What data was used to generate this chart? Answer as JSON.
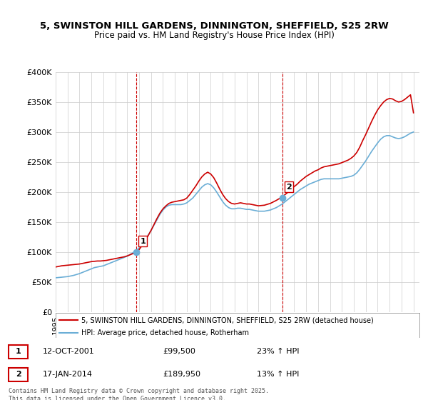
{
  "title_line1": "5, SWINSTON HILL GARDENS, DINNINGTON, SHEFFIELD, S25 2RW",
  "title_line2": "Price paid vs. HM Land Registry's House Price Index (HPI)",
  "ylabel": "",
  "xlabel": "",
  "ylim": [
    0,
    400000
  ],
  "yticks": [
    0,
    50000,
    100000,
    150000,
    200000,
    250000,
    300000,
    350000,
    400000
  ],
  "ytick_labels": [
    "£0",
    "£50K",
    "£100K",
    "£150K",
    "£200K",
    "£250K",
    "£300K",
    "£350K",
    "£400K"
  ],
  "xlim_start": 1995.0,
  "xlim_end": 2025.5,
  "sale1_x": 2001.786,
  "sale1_y": 99500,
  "sale1_label": "1",
  "sale1_date": "12-OCT-2001",
  "sale1_price": "£99,500",
  "sale1_hpi": "23% ↑ HPI",
  "sale2_x": 2014.046,
  "sale2_y": 189950,
  "sale2_label": "2",
  "sale2_date": "17-JAN-2014",
  "sale2_price": "£189,950",
  "sale2_hpi": "13% ↑ HPI",
  "hpi_color": "#6baed6",
  "price_color": "#cc0000",
  "vline_color": "#cc0000",
  "background_color": "#ffffff",
  "grid_color": "#cccccc",
  "legend_label_price": "5, SWINSTON HILL GARDENS, DINNINGTON, SHEFFIELD, S25 2RW (detached house)",
  "legend_label_hpi": "HPI: Average price, detached house, Rotherham",
  "footnote": "Contains HM Land Registry data © Crown copyright and database right 2025.\nThis data is licensed under the Open Government Licence v3.0.",
  "hpi_data_x": [
    1995.0,
    1995.25,
    1995.5,
    1995.75,
    1996.0,
    1996.25,
    1996.5,
    1996.75,
    1997.0,
    1997.25,
    1997.5,
    1997.75,
    1998.0,
    1998.25,
    1998.5,
    1998.75,
    1999.0,
    1999.25,
    1999.5,
    1999.75,
    2000.0,
    2000.25,
    2000.5,
    2000.75,
    2001.0,
    2001.25,
    2001.5,
    2001.75,
    2002.0,
    2002.25,
    2002.5,
    2002.75,
    2003.0,
    2003.25,
    2003.5,
    2003.75,
    2004.0,
    2004.25,
    2004.5,
    2004.75,
    2005.0,
    2005.25,
    2005.5,
    2005.75,
    2006.0,
    2006.25,
    2006.5,
    2006.75,
    2007.0,
    2007.25,
    2007.5,
    2007.75,
    2008.0,
    2008.25,
    2008.5,
    2008.75,
    2009.0,
    2009.25,
    2009.5,
    2009.75,
    2010.0,
    2010.25,
    2010.5,
    2010.75,
    2011.0,
    2011.25,
    2011.5,
    2011.75,
    2012.0,
    2012.25,
    2012.5,
    2012.75,
    2013.0,
    2013.25,
    2013.5,
    2013.75,
    2014.0,
    2014.25,
    2014.5,
    2014.75,
    2015.0,
    2015.25,
    2015.5,
    2015.75,
    2016.0,
    2016.25,
    2016.5,
    2016.75,
    2017.0,
    2017.25,
    2017.5,
    2017.75,
    2018.0,
    2018.25,
    2018.5,
    2018.75,
    2019.0,
    2019.25,
    2019.5,
    2019.75,
    2020.0,
    2020.25,
    2020.5,
    2020.75,
    2021.0,
    2021.25,
    2021.5,
    2021.75,
    2022.0,
    2022.25,
    2022.5,
    2022.75,
    2023.0,
    2023.25,
    2023.5,
    2023.75,
    2024.0,
    2024.25,
    2024.5,
    2024.75,
    2025.0
  ],
  "hpi_data_y": [
    57000,
    57500,
    58000,
    58500,
    59000,
    60000,
    61000,
    62500,
    64000,
    66000,
    68000,
    70000,
    72000,
    74000,
    75000,
    76000,
    77000,
    79000,
    81000,
    83000,
    85000,
    87000,
    89000,
    91000,
    93000,
    96000,
    99000,
    102000,
    107000,
    113000,
    120000,
    128000,
    136000,
    145000,
    154000,
    163000,
    170000,
    175000,
    178000,
    179000,
    179000,
    179000,
    179000,
    180000,
    182000,
    186000,
    190000,
    196000,
    202000,
    208000,
    212000,
    214000,
    212000,
    207000,
    200000,
    192000,
    184000,
    178000,
    174000,
    172000,
    172000,
    173000,
    173000,
    172000,
    171000,
    171000,
    170000,
    169000,
    168000,
    168000,
    168000,
    169000,
    170000,
    172000,
    174000,
    177000,
    180000,
    184000,
    188000,
    192000,
    196000,
    200000,
    204000,
    207000,
    210000,
    213000,
    215000,
    217000,
    219000,
    221000,
    222000,
    222000,
    222000,
    222000,
    222000,
    222000,
    223000,
    224000,
    225000,
    226000,
    228000,
    232000,
    238000,
    245000,
    252000,
    260000,
    268000,
    275000,
    282000,
    288000,
    292000,
    294000,
    294000,
    292000,
    290000,
    289000,
    290000,
    292000,
    295000,
    298000,
    300000
  ],
  "price_data_x": [
    1995.0,
    1995.25,
    1995.5,
    1995.75,
    1996.0,
    1996.25,
    1996.5,
    1996.75,
    1997.0,
    1997.25,
    1997.5,
    1997.75,
    1998.0,
    1998.25,
    1998.5,
    1998.75,
    1999.0,
    1999.25,
    1999.5,
    1999.75,
    2000.0,
    2000.25,
    2000.5,
    2000.75,
    2001.0,
    2001.25,
    2001.5,
    2001.75,
    2002.0,
    2002.25,
    2002.5,
    2002.75,
    2003.0,
    2003.25,
    2003.5,
    2003.75,
    2004.0,
    2004.25,
    2004.5,
    2004.75,
    2005.0,
    2005.25,
    2005.5,
    2005.75,
    2006.0,
    2006.25,
    2006.5,
    2006.75,
    2007.0,
    2007.25,
    2007.5,
    2007.75,
    2008.0,
    2008.25,
    2008.5,
    2008.75,
    2009.0,
    2009.25,
    2009.5,
    2009.75,
    2010.0,
    2010.25,
    2010.5,
    2010.75,
    2011.0,
    2011.25,
    2011.5,
    2011.75,
    2012.0,
    2012.25,
    2012.5,
    2012.75,
    2013.0,
    2013.25,
    2013.5,
    2013.75,
    2014.0,
    2014.25,
    2014.5,
    2014.75,
    2015.0,
    2015.25,
    2015.5,
    2015.75,
    2016.0,
    2016.25,
    2016.5,
    2016.75,
    2017.0,
    2017.25,
    2017.5,
    2017.75,
    2018.0,
    2018.25,
    2018.5,
    2018.75,
    2019.0,
    2019.25,
    2019.5,
    2019.75,
    2020.0,
    2020.25,
    2020.5,
    2020.75,
    2021.0,
    2021.25,
    2021.5,
    2021.75,
    2022.0,
    2022.25,
    2022.5,
    2022.75,
    2023.0,
    2023.25,
    2023.5,
    2023.75,
    2024.0,
    2024.25,
    2024.5,
    2024.75,
    2025.0
  ],
  "price_data_y": [
    75000,
    76000,
    77000,
    77500,
    78000,
    78500,
    79000,
    79500,
    80000,
    81000,
    82000,
    83000,
    84000,
    84500,
    85000,
    85000,
    85500,
    86000,
    87000,
    88000,
    89000,
    90000,
    91000,
    92000,
    93500,
    95500,
    97500,
    99500,
    104000,
    111000,
    119000,
    127000,
    136000,
    146000,
    156000,
    165000,
    172000,
    177000,
    181000,
    183000,
    184000,
    185000,
    186000,
    187000,
    190000,
    196000,
    203000,
    210000,
    218000,
    225000,
    230000,
    233000,
    230000,
    224000,
    215000,
    205000,
    196000,
    189000,
    184000,
    181000,
    180000,
    181000,
    182000,
    181000,
    180000,
    180000,
    179000,
    178000,
    177000,
    177500,
    178000,
    179500,
    181000,
    183500,
    186000,
    189000,
    192000,
    196000,
    200000,
    205000,
    209000,
    213000,
    218000,
    222000,
    226000,
    229000,
    232000,
    235000,
    237000,
    240000,
    242000,
    243000,
    244000,
    245000,
    246000,
    247000,
    249000,
    251000,
    253000,
    256000,
    260000,
    266000,
    275000,
    286000,
    296000,
    307000,
    318000,
    328000,
    337000,
    344000,
    350000,
    354000,
    356000,
    355000,
    352000,
    350000,
    351000,
    354000,
    358000,
    362000,
    332000
  ]
}
